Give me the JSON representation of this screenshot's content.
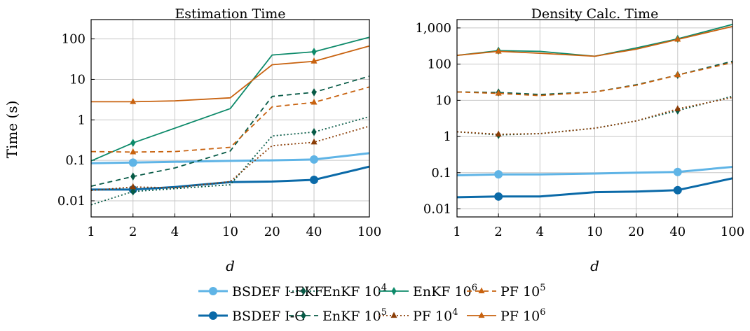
{
  "colors": {
    "bsdef_iekf": "#5fb4e6",
    "bsdef_ig": "#0b6aa8",
    "enkf": "#0d8a6a",
    "enkf_dark": "#075a46",
    "pf": "#c8620f",
    "pf_dark": "#8a3c05"
  },
  "ylabel": "Time (s)",
  "legend": [
    {
      "key": "bsdef_iekf",
      "label": "BSDEF I-EKF"
    },
    {
      "key": "enkf4",
      "label": "EnKF 10",
      "sup": "4"
    },
    {
      "key": "enkf6",
      "label": "EnKF 10",
      "sup": "6"
    },
    {
      "key": "pf5",
      "label": "PF 10",
      "sup": "5"
    },
    {
      "key": "bsdef_ig",
      "label": "BSDEF I-G"
    },
    {
      "key": "enkf5",
      "label": "EnKF 10",
      "sup": "5"
    },
    {
      "key": "pf4",
      "label": "PF 10",
      "sup": "4"
    },
    {
      "key": "pf6",
      "label": "PF 10",
      "sup": "6"
    }
  ],
  "chart_data": [
    {
      "type": "line",
      "title": "Estimation Time",
      "xlabel": "d",
      "ylabel": "Time (s)",
      "xscale": "log",
      "yscale": "log",
      "xlim": [
        1,
        100
      ],
      "ylim": [
        0.004,
        300
      ],
      "xticks": [
        1,
        2,
        4,
        10,
        20,
        40,
        100
      ],
      "xtick_labels": [
        "1",
        "2",
        "4",
        "10",
        "20",
        "40",
        "100"
      ],
      "yticks": [
        0.01,
        0.1,
        1,
        10,
        100
      ],
      "ytick_labels": [
        "0.01",
        "0.1",
        "1",
        "10",
        "100"
      ],
      "grid": true,
      "series": [
        {
          "key": "bsdef_iekf",
          "name": "BSDEF I-EKF",
          "x": [
            1,
            2,
            10,
            20,
            40,
            100
          ],
          "y": [
            0.085,
            0.088,
            0.097,
            0.1,
            0.105,
            0.15
          ]
        },
        {
          "key": "bsdef_ig",
          "name": "BSDEF I-G",
          "x": [
            1,
            2,
            4,
            10,
            20,
            40,
            100
          ],
          "y": [
            0.019,
            0.019,
            0.022,
            0.029,
            0.03,
            0.033,
            0.07
          ]
        },
        {
          "key": "enkf4",
          "name": "EnKF 10^4",
          "x": [
            1,
            2,
            4,
            10,
            20,
            40,
            100
          ],
          "y": [
            0.008,
            0.017,
            0.02,
            0.025,
            0.4,
            0.5,
            1.2
          ]
        },
        {
          "key": "enkf5",
          "name": "EnKF 10^5",
          "x": [
            1,
            2,
            4,
            10,
            20,
            40,
            100
          ],
          "y": [
            0.023,
            0.04,
            0.065,
            0.17,
            3.8,
            4.8,
            12
          ]
        },
        {
          "key": "enkf6",
          "name": "EnKF 10^6",
          "x": [
            1,
            2,
            10,
            20,
            40,
            100
          ],
          "y": [
            0.097,
            0.27,
            1.9,
            40,
            48,
            110
          ]
        },
        {
          "key": "pf4",
          "name": "PF 10^4",
          "x": [
            1,
            2,
            4,
            10,
            20,
            40,
            100
          ],
          "y": [
            0.018,
            0.022,
            0.021,
            0.03,
            0.23,
            0.28,
            0.7
          ]
        },
        {
          "key": "pf5",
          "name": "PF 10^5",
          "x": [
            1,
            2,
            4,
            10,
            20,
            40,
            100
          ],
          "y": [
            0.165,
            0.16,
            0.165,
            0.21,
            2.1,
            2.7,
            6.5
          ]
        },
        {
          "key": "pf6",
          "name": "PF 10^6",
          "x": [
            1,
            2,
            4,
            10,
            20,
            40,
            100
          ],
          "y": [
            2.8,
            2.8,
            2.95,
            3.5,
            23,
            28,
            67
          ]
        }
      ]
    },
    {
      "type": "line",
      "title": "Density Calc. Time",
      "xlabel": "d",
      "ylabel": "",
      "xscale": "log",
      "yscale": "log",
      "xlim": [
        1,
        100
      ],
      "ylim": [
        0.006,
        1700
      ],
      "xticks": [
        1,
        2,
        4,
        10,
        20,
        40,
        100
      ],
      "xtick_labels": [
        "1",
        "2",
        "4",
        "10",
        "20",
        "40",
        "100"
      ],
      "yticks": [
        0.01,
        0.1,
        1,
        10,
        100,
        1000
      ],
      "ytick_labels": [
        "0.01",
        "0.1",
        "1",
        "10",
        "100",
        "1,000"
      ],
      "grid": true,
      "series": [
        {
          "key": "bsdef_iekf",
          "name": "BSDEF I-EKF",
          "x": [
            1,
            2,
            4,
            10,
            20,
            40,
            100
          ],
          "y": [
            0.085,
            0.09,
            0.09,
            0.095,
            0.1,
            0.105,
            0.145
          ]
        },
        {
          "key": "bsdef_ig",
          "name": "BSDEF I-G",
          "x": [
            1,
            2,
            4,
            10,
            20,
            40,
            100
          ],
          "y": [
            0.021,
            0.022,
            0.022,
            0.029,
            0.03,
            0.033,
            0.07
          ]
        },
        {
          "key": "enkf4",
          "name": "EnKF 10^4",
          "x": [
            1,
            2,
            4,
            10,
            20,
            40,
            100
          ],
          "y": [
            1.35,
            1.1,
            1.2,
            1.7,
            2.7,
            5.2,
            13
          ]
        },
        {
          "key": "enkf5",
          "name": "EnKF 10^5",
          "x": [
            1,
            2,
            4,
            10,
            20,
            40,
            100
          ],
          "y": [
            17,
            16.5,
            14.5,
            17,
            27,
            50,
            120
          ]
        },
        {
          "key": "enkf6",
          "name": "EnKF 10^6",
          "x": [
            1,
            2,
            4,
            10,
            20,
            40,
            100
          ],
          "y": [
            175,
            235,
            225,
            165,
            280,
            500,
            1250
          ]
        },
        {
          "key": "pf4",
          "name": "PF 10^4",
          "x": [
            1,
            2,
            4,
            10,
            20,
            40,
            100
          ],
          "y": [
            1.35,
            1.15,
            1.2,
            1.7,
            2.7,
            5.8,
            12
          ]
        },
        {
          "key": "pf5",
          "name": "PF 10^5",
          "x": [
            1,
            2,
            4,
            10,
            20,
            40,
            100
          ],
          "y": [
            17,
            15.5,
            13.5,
            17,
            26,
            50,
            110
          ]
        },
        {
          "key": "pf6",
          "name": "PF 10^6",
          "x": [
            1,
            2,
            4,
            10,
            20,
            40,
            100
          ],
          "y": [
            175,
            225,
            200,
            165,
            260,
            480,
            1100
          ]
        }
      ]
    }
  ]
}
